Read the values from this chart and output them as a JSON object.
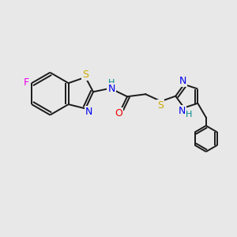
{
  "background_color": "#e8e8e8",
  "bond_color": "#1a1a1a",
  "atom_colors": {
    "F": "#ee00ee",
    "S": "#ccaa00",
    "N": "#0000ee",
    "O": "#ee0000",
    "H": "#008888",
    "C": "#1a1a1a"
  },
  "figsize": [
    3.0,
    3.0
  ],
  "dpi": 100,
  "lw": 1.4,
  "fontsize": 9
}
